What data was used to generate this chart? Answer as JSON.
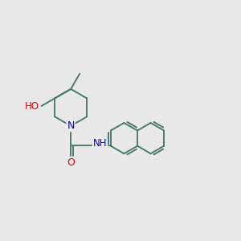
{
  "bg_color": "#e8e8e8",
  "bond_color": "#4a7c6a",
  "bond_width": 1.4,
  "atom_colors": {
    "N": "#0000ee",
    "O": "#ee0000",
    "C": "#4a7c6a"
  },
  "font_size": 8.5,
  "fig_size": [
    3.0,
    3.0
  ],
  "dpi": 100
}
